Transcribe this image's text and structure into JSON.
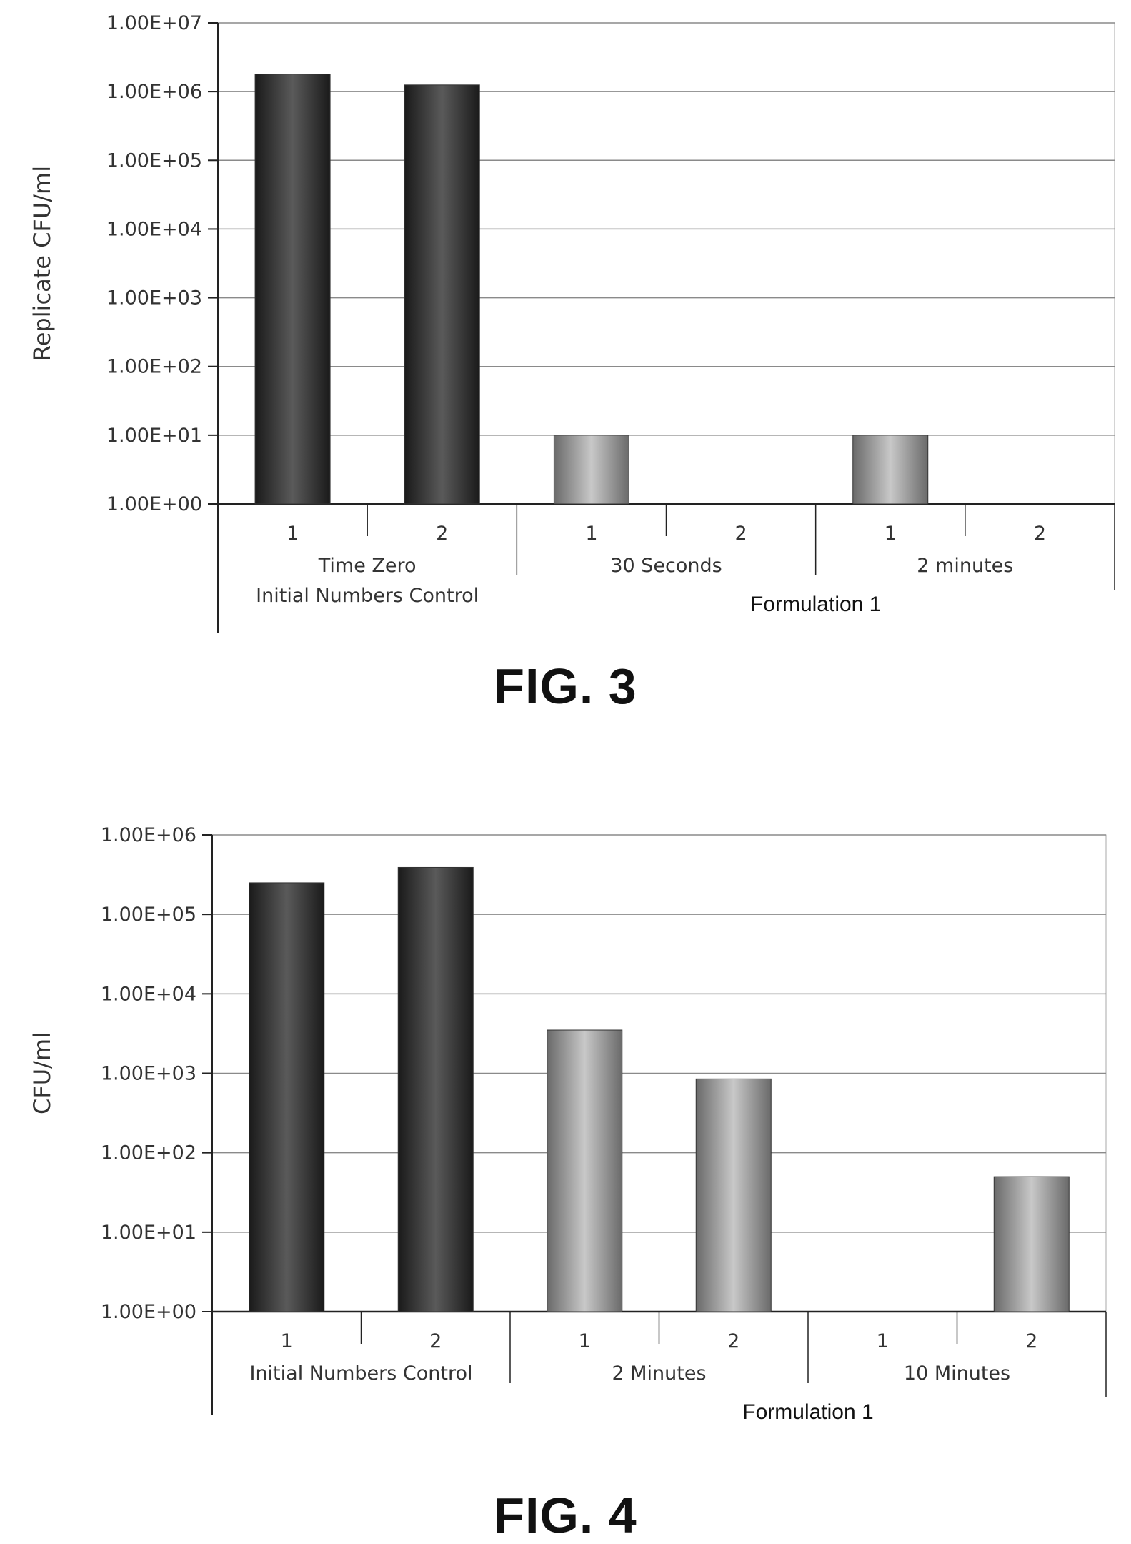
{
  "figures": [
    {
      "caption": "FIG. 3",
      "chart_data": {
        "type": "bar",
        "log_scale": true,
        "ylabel": "Replicate CFU/ml",
        "xlabel": "",
        "ylim": [
          1,
          10000000
        ],
        "y_ticks": [
          1,
          10,
          100,
          1000,
          10000,
          100000,
          1000000,
          10000000
        ],
        "y_tick_labels": [
          "1.00E+00",
          "1.00E+01",
          "1.00E+02",
          "1.00E+03",
          "1.00E+04",
          "1.00E+05",
          "1.00E+06",
          "1.00E+07"
        ],
        "grid": true,
        "groups": [
          {
            "label_lines": [
              "Time Zero",
              "Initial Numbers Control"
            ],
            "categories": [
              "1",
              "2"
            ],
            "values": [
              1800000,
              1250000
            ],
            "bar_color": "#2b2b2b"
          },
          {
            "label_lines": [
              "30 Seconds"
            ],
            "categories": [
              "1",
              "2"
            ],
            "values": [
              10,
              null
            ],
            "bar_color": "#8c8c8c"
          },
          {
            "label_lines": [
              "2 minutes"
            ],
            "categories": [
              "1",
              "2"
            ],
            "values": [
              10,
              null
            ],
            "bar_color": "#8c8c8c"
          }
        ],
        "super_groups": [
          {
            "label": "Formulation 1",
            "group_span": [
              1,
              2
            ]
          }
        ]
      }
    },
    {
      "caption": "FIG. 4",
      "chart_data": {
        "type": "bar",
        "log_scale": true,
        "ylabel": "CFU/ml",
        "xlabel": "",
        "ylim": [
          1,
          1000000
        ],
        "y_ticks": [
          1,
          10,
          100,
          1000,
          10000,
          100000,
          1000000
        ],
        "y_tick_labels": [
          "1.00E+00",
          "1.00E+01",
          "1.00E+02",
          "1.00E+03",
          "1.00E+04",
          "1.00E+05",
          "1.00E+06"
        ],
        "grid": true,
        "groups": [
          {
            "label_lines": [
              "Initial Numbers Control"
            ],
            "categories": [
              "1",
              "2"
            ],
            "values": [
              250000,
              390000
            ],
            "bar_color": "#2b2b2b"
          },
          {
            "label_lines": [
              "2 Minutes"
            ],
            "categories": [
              "1",
              "2"
            ],
            "values": [
              3500,
              850
            ],
            "bar_color": "#8c8c8c"
          },
          {
            "label_lines": [
              "10 Minutes"
            ],
            "categories": [
              "1",
              "2"
            ],
            "values": [
              null,
              50
            ],
            "bar_color": "#8c8c8c"
          }
        ],
        "super_groups": [
          {
            "label": "Formulation 1",
            "group_span": [
              1,
              2
            ]
          }
        ]
      }
    }
  ]
}
